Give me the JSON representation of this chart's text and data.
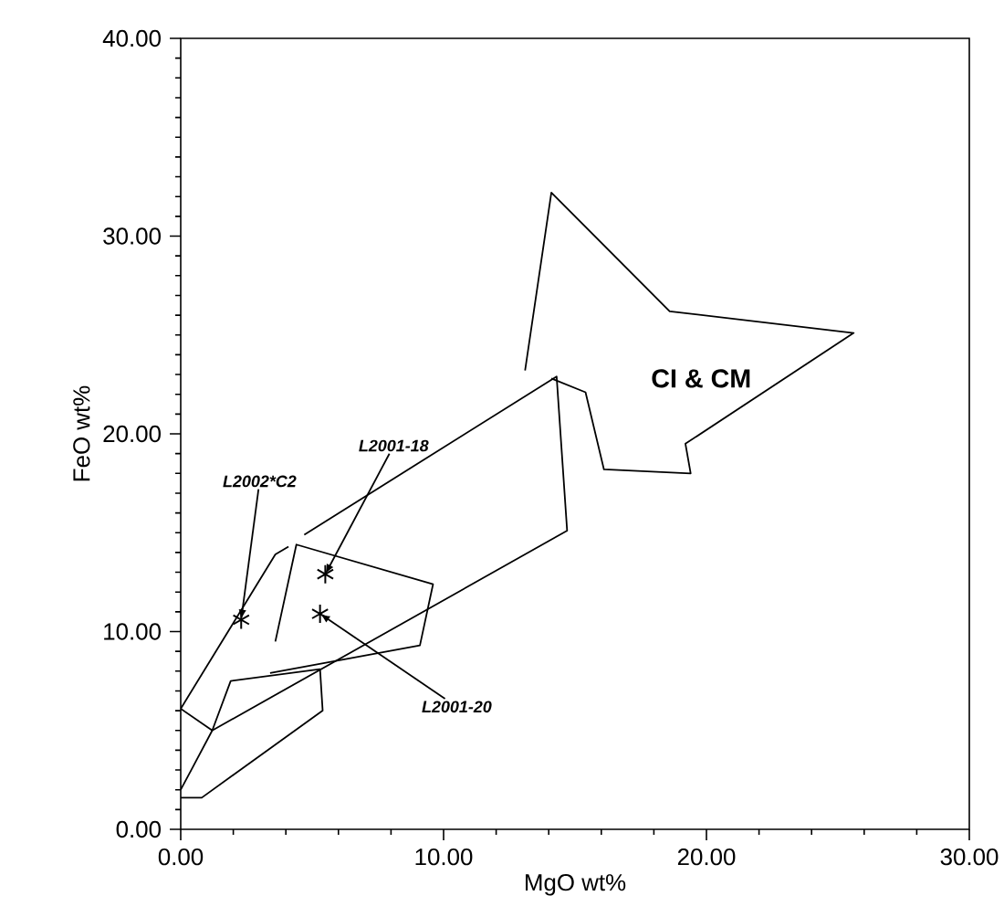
{
  "chart_data": {
    "type": "line",
    "xlabel": "MgO  wt%",
    "ylabel": "FeO  wt%",
    "xlim": [
      0,
      30
    ],
    "ylim": [
      0,
      40
    ],
    "xticks": [
      {
        "value": 0,
        "label": "0.00"
      },
      {
        "value": 10,
        "label": "10.00"
      },
      {
        "value": 20,
        "label": "20.00"
      },
      {
        "value": 30,
        "label": "30.00"
      }
    ],
    "yticks": [
      {
        "value": 0,
        "label": "0.00"
      },
      {
        "value": 10,
        "label": "10.00"
      },
      {
        "value": 20,
        "label": "20.00"
      },
      {
        "value": 30,
        "label": "30.00"
      },
      {
        "value": 40,
        "label": "40.00"
      }
    ],
    "grid": false,
    "series": [
      {
        "color": "#000000",
        "marker": "none",
        "x": [
          14.1,
          15.4,
          16.1,
          19.4,
          19.2,
          25.6,
          18.6,
          14.1,
          13.1
        ],
        "values": [
          22.8,
          22.1,
          18.2,
          18.0,
          19.5,
          25.1,
          26.2,
          32.2,
          23.2
        ]
      },
      {
        "color": "#000000",
        "marker": "none",
        "x": [
          4.7,
          14.3,
          14.7,
          1.2,
          0,
          3.6,
          4.1
        ],
        "values": [
          14.9,
          22.9,
          15.1,
          5.0,
          6.1,
          13.9,
          14.3
        ]
      },
      {
        "color": "#000000",
        "marker": "none",
        "x": [
          3.6,
          4.4,
          9.6,
          9.1,
          3.4
        ],
        "values": [
          9.5,
          14.4,
          12.4,
          9.3,
          7.9
        ]
      },
      {
        "color": "#000000",
        "marker": "none",
        "x": [
          0,
          0.8,
          5.4,
          5.3,
          1.9,
          1.2,
          0.4,
          0
        ],
        "values": [
          1.6,
          1.6,
          6.0,
          8.1,
          7.5,
          5.0,
          3.0,
          2.0
        ]
      },
      {
        "type": "scatter",
        "color": "#000000",
        "marker": "cross",
        "x": [
          2.3,
          5.5,
          5.3
        ],
        "values": [
          10.6,
          12.9,
          10.9
        ]
      }
    ],
    "annotations": [
      "CI & CM",
      {
        "text": "L2002*C2",
        "x": 2.3,
        "y": 10.6
      },
      {
        "text": "L2001-18",
        "x": 5.5,
        "y": 12.9
      },
      {
        "text": "L2001-20",
        "x": 5.3,
        "y": 10.9
      }
    ]
  }
}
